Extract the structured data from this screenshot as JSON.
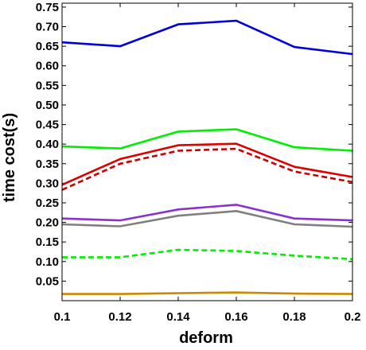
{
  "chart_data": {
    "type": "line",
    "xlabel": "deform",
    "ylabel": "time cost(s)",
    "xlim": [
      0.1,
      0.2
    ],
    "ylim": [
      0.0,
      0.76
    ],
    "x": [
      0.1,
      0.12,
      0.14,
      0.16,
      0.18,
      0.2
    ],
    "x_tick_labels": [
      "0.1",
      "0.12",
      "0.14",
      "0.16",
      "0.18",
      "0.2"
    ],
    "y_ticks": [
      0.05,
      0.1,
      0.15,
      0.2,
      0.25,
      0.3,
      0.35,
      0.4,
      0.45,
      0.5,
      0.55,
      0.6,
      0.65,
      0.7,
      0.75
    ],
    "y_tick_labels": [
      "0.05",
      "0.10",
      "0.15",
      "0.20",
      "0.25",
      "0.30",
      "0.35",
      "0.40",
      "0.45",
      "0.50",
      "0.55",
      "0.60",
      "0.65",
      "0.70",
      "0.75"
    ],
    "grid": false,
    "legend": "none",
    "series": [
      {
        "color": "#0000dd",
        "dash": "solid",
        "values": [
          0.66,
          0.65,
          0.706,
          0.715,
          0.648,
          0.63
        ]
      },
      {
        "color": "#00ee00",
        "dash": "solid",
        "values": [
          0.394,
          0.389,
          0.432,
          0.438,
          0.392,
          0.383
        ]
      },
      {
        "color": "#dd0000",
        "dash": "solid",
        "values": [
          0.296,
          0.362,
          0.397,
          0.401,
          0.342,
          0.316
        ]
      },
      {
        "color": "#cc0000",
        "dash": "dashed",
        "values": [
          0.283,
          0.35,
          0.383,
          0.388,
          0.33,
          0.303
        ]
      },
      {
        "color": "#8833cc",
        "dash": "solid",
        "values": [
          0.21,
          0.205,
          0.233,
          0.245,
          0.21,
          0.205
        ]
      },
      {
        "color": "#808080",
        "dash": "solid",
        "values": [
          0.195,
          0.19,
          0.217,
          0.229,
          0.195,
          0.189
        ]
      },
      {
        "color": "#00ee00",
        "dash": "dashed",
        "values": [
          0.111,
          0.111,
          0.13,
          0.127,
          0.115,
          0.106
        ]
      },
      {
        "color": "#cc8800",
        "dash": "solid",
        "values": [
          0.017,
          0.017,
          0.019,
          0.021,
          0.018,
          0.017
        ]
      }
    ]
  }
}
